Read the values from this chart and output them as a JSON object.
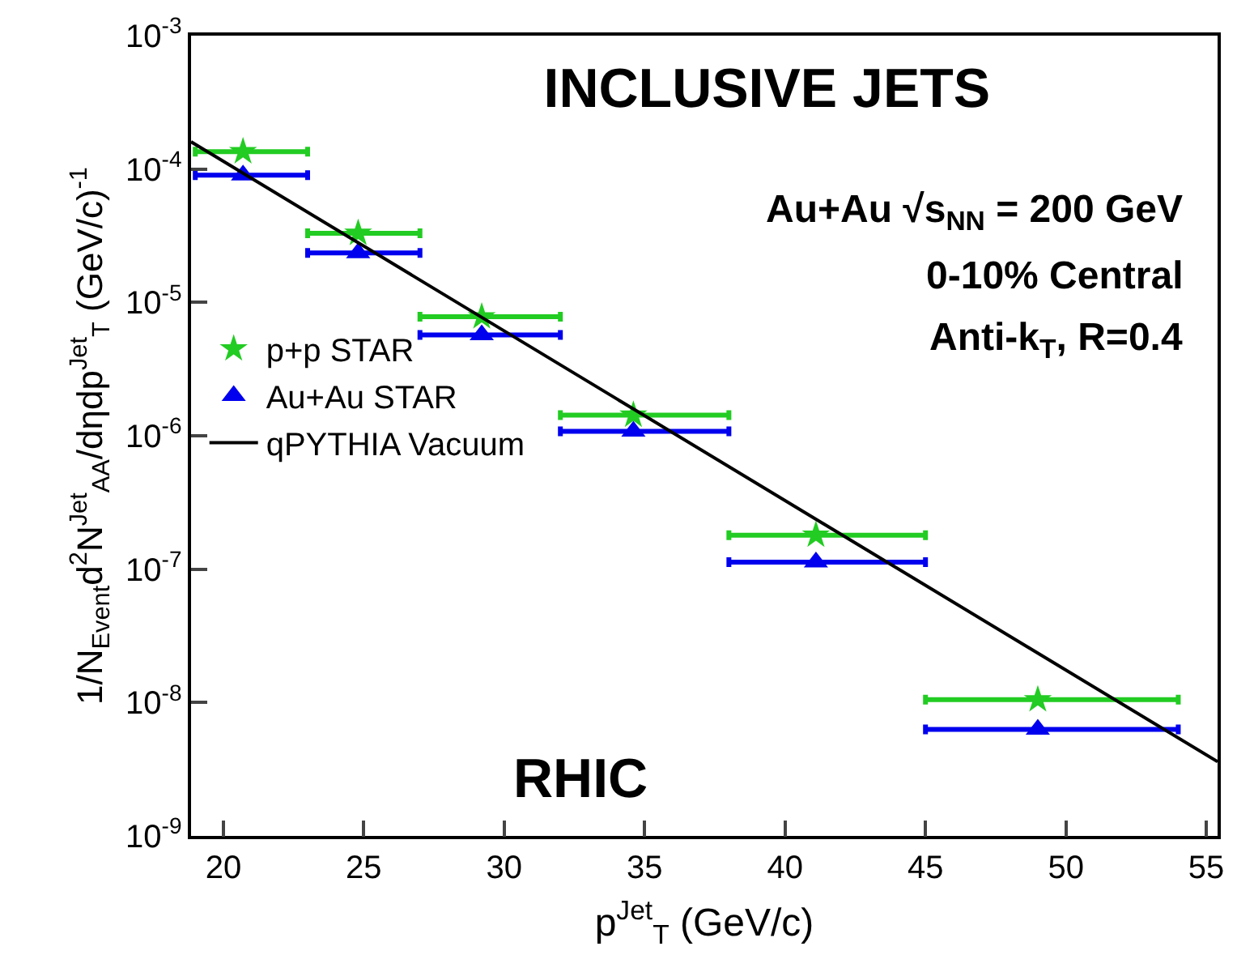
{
  "chart_data": {
    "type": "scatter",
    "title": "INCLUSIVE JETS",
    "xlabel": "p$^{Jet}$$_{T}$ (GeV/c)",
    "ylabel": "1/N$_{Event}$d$^{2}$N$^{Jet}$$_{AA}$/dηdp$^{Jet}$$_{T}$ (GeV/c)$^{-1}$",
    "x": [
      20.7,
      24.8,
      29.2,
      34.6,
      41.1,
      49.0
    ],
    "series": [
      {
        "name": "p+p STAR",
        "color": "#22cc22",
        "marker": "star",
        "values": [
          0.000135,
          3.3e-05,
          7.8e-06,
          1.43e-06,
          1.8e-07,
          1.05e-08
        ],
        "xerrors": [
          [
            19,
            23
          ],
          [
            23,
            27
          ],
          [
            27,
            32
          ],
          [
            32,
            38
          ],
          [
            38,
            45
          ],
          [
            45,
            54
          ]
        ]
      },
      {
        "name": "Au+Au STAR",
        "color": "#0000ee",
        "marker": "triangle",
        "values": [
          9e-05,
          2.35e-05,
          5.7e-06,
          1.08e-06,
          1.13e-07,
          6.3e-09
        ],
        "xerrors": [
          [
            19,
            23
          ],
          [
            23,
            27
          ],
          [
            27,
            32
          ],
          [
            32,
            38
          ],
          [
            38,
            45
          ],
          [
            45,
            54
          ]
        ]
      },
      {
        "name": "qPYTHIA Vacuum",
        "type": "line",
        "color": "#000000",
        "marker": "none",
        "x": [
          18.85,
          55.4
        ],
        "values": [
          0.00016,
          3.6e-09
        ]
      }
    ],
    "annotations": [
      "Au+Au √s$_{NN}$ = 200 GeV",
      "0-10% Central",
      "Anti-k$_{T}$, R=0.4",
      "RHIC"
    ],
    "log": "y",
    "legend": "left",
    "xlim": [
      18.85,
      55.4
    ],
    "xticks": [
      20,
      25,
      30,
      35,
      40,
      45,
      50,
      55
    ],
    "ylim": [
      1e-09,
      0.001
    ],
    "yticks": [
      {
        "value": 1e-09,
        "label": "10$^{-9}$"
      },
      {
        "value": 1e-08,
        "label": "10$^{-8}$"
      },
      {
        "value": 1e-07,
        "label": "10$^{-7}$"
      },
      {
        "value": 1e-06,
        "label": "10$^{-6}$"
      },
      {
        "value": 1e-05,
        "label": "10$^{-5}$"
      },
      {
        "value": 0.0001,
        "label": "10$^{-4}$"
      },
      {
        "value": 0.001,
        "label": "10$^{-3}$"
      }
    ]
  }
}
